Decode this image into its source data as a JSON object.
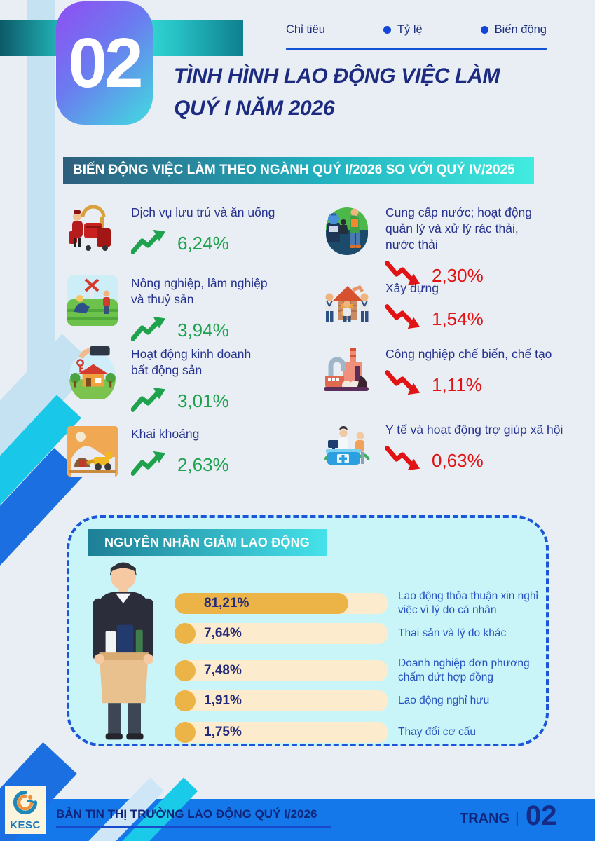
{
  "colors": {
    "up": "#1fa24e",
    "down": "#e01414",
    "accent_blue": "#1553d6",
    "banner_from": "#2e5f7d",
    "banner_to": "#41ecdf",
    "bar_fill": "#ecb347",
    "bar_track": "#fdebcd",
    "footer_blue": "#1478ea",
    "navy": "#1c2b80"
  },
  "header": {
    "section_number": "02",
    "legend": [
      {
        "label": "Chỉ tiêu",
        "bullet": false
      },
      {
        "label": "Tỷ lệ",
        "bullet": true
      },
      {
        "label": "Biến động",
        "bullet": true
      }
    ],
    "title_line1": "TÌNH HÌNH LAO ĐỘNG VIỆC LÀM",
    "title_line2": "QUÝ I NĂM 2026"
  },
  "section_banner": "BIẾN ĐỘNG VIỆC LÀM THEO NGÀNH QUÝ I/2026 SO VỚI QUÝ IV/2025",
  "sectors": {
    "left": [
      {
        "name": "Dịch vụ lưu trú và ăn uống",
        "value": "6,24%",
        "direction": "up",
        "icon": "bellhop-luggage-icon"
      },
      {
        "name": "Nông nghiệp, lâm nghiệp\nvà thuỷ sản",
        "value": "3,94%",
        "direction": "up",
        "icon": "farming-icon"
      },
      {
        "name": "Hoạt động kinh doanh\nbất động sản",
        "value": "3,01%",
        "direction": "up",
        "icon": "real-estate-icon"
      },
      {
        "name": "Khai khoáng",
        "value": "2,63%",
        "direction": "up",
        "icon": "mining-icon"
      }
    ],
    "right": [
      {
        "name": "Cung cấp nước; hoạt động\nquản lý và xử lý rác thải,\nnước thải",
        "value": "2,30%",
        "direction": "down",
        "icon": "waste-water-icon"
      },
      {
        "name": "Xây dựng",
        "value": "1,54%",
        "direction": "down",
        "icon": "construction-icon"
      },
      {
        "name": "Công nghiệp chế biến, chế tạo",
        "value": "1,11%",
        "direction": "down",
        "icon": "factory-icon"
      },
      {
        "name": "Y tế và hoạt động trợ giúp xã hội",
        "value": "0,63%",
        "direction": "down",
        "icon": "healthcare-icon"
      }
    ]
  },
  "reasons_box": {
    "title": "NGUYÊN NHÂN GIẢM LAO ĐỘNG",
    "bars": [
      {
        "value_label": "81,21%",
        "value": 81.21,
        "label": "Lao động thỏa thuận xin nghỉ\nviệc vì lý do cá nhân"
      },
      {
        "value_label": "7,64%",
        "value": 7.64,
        "label": "Thai sản và lý do khác"
      },
      {
        "value_label": "7,48%",
        "value": 7.48,
        "label": "Doanh nghiệp đơn phương\nchấm dứt hợp đồng"
      },
      {
        "value_label": "1,91%",
        "value": 1.91,
        "label": "Lao động nghỉ hưu"
      },
      {
        "value_label": "1,75%",
        "value": 1.75,
        "label": "Thay đổi cơ cấu"
      }
    ]
  },
  "footer": {
    "logo_text": "KESC",
    "bulletin": "BẢN TIN THỊ TRƯỜNG LAO ĐỘNG QUÝ I/2026",
    "page_word": "TRANG",
    "pipe": "|",
    "page_number": "02"
  },
  "chart_data": [
    {
      "type": "bar",
      "title": "BIẾN ĐỘNG VIỆC LÀM THEO NGÀNH QUÝ I/2026 SO VỚI QUÝ IV/2025",
      "categories": [
        "Dịch vụ lưu trú và ăn uống",
        "Nông nghiệp, lâm nghiệp và thuỷ sản",
        "Hoạt động kinh doanh bất động sản",
        "Khai khoáng",
        "Cung cấp nước; hoạt động quản lý và xử lý rác thải, nước thải",
        "Xây dựng",
        "Công nghiệp chế biến, chế tạo",
        "Y tế và hoạt động trợ giúp xã hội"
      ],
      "values": [
        6.24,
        3.94,
        3.01,
        2.63,
        -2.3,
        -1.54,
        -1.11,
        -0.63
      ],
      "unit": "%",
      "note": "positive = increase (green up arrow), negative = decrease (red down arrow)"
    },
    {
      "type": "bar",
      "orientation": "horizontal",
      "title": "NGUYÊN NHÂN GIẢM LAO ĐỘNG",
      "categories": [
        "Lao động thỏa thuận xin nghỉ việc vì lý do cá nhân",
        "Thai sản và lý do khác",
        "Doanh nghiệp đơn phương chấm dứt hợp đồng",
        "Lao động nghỉ hưu",
        "Thay đổi cơ cấu"
      ],
      "values": [
        81.21,
        7.64,
        7.48,
        1.91,
        1.75
      ],
      "unit": "%",
      "xlim": [
        0,
        100
      ]
    }
  ]
}
